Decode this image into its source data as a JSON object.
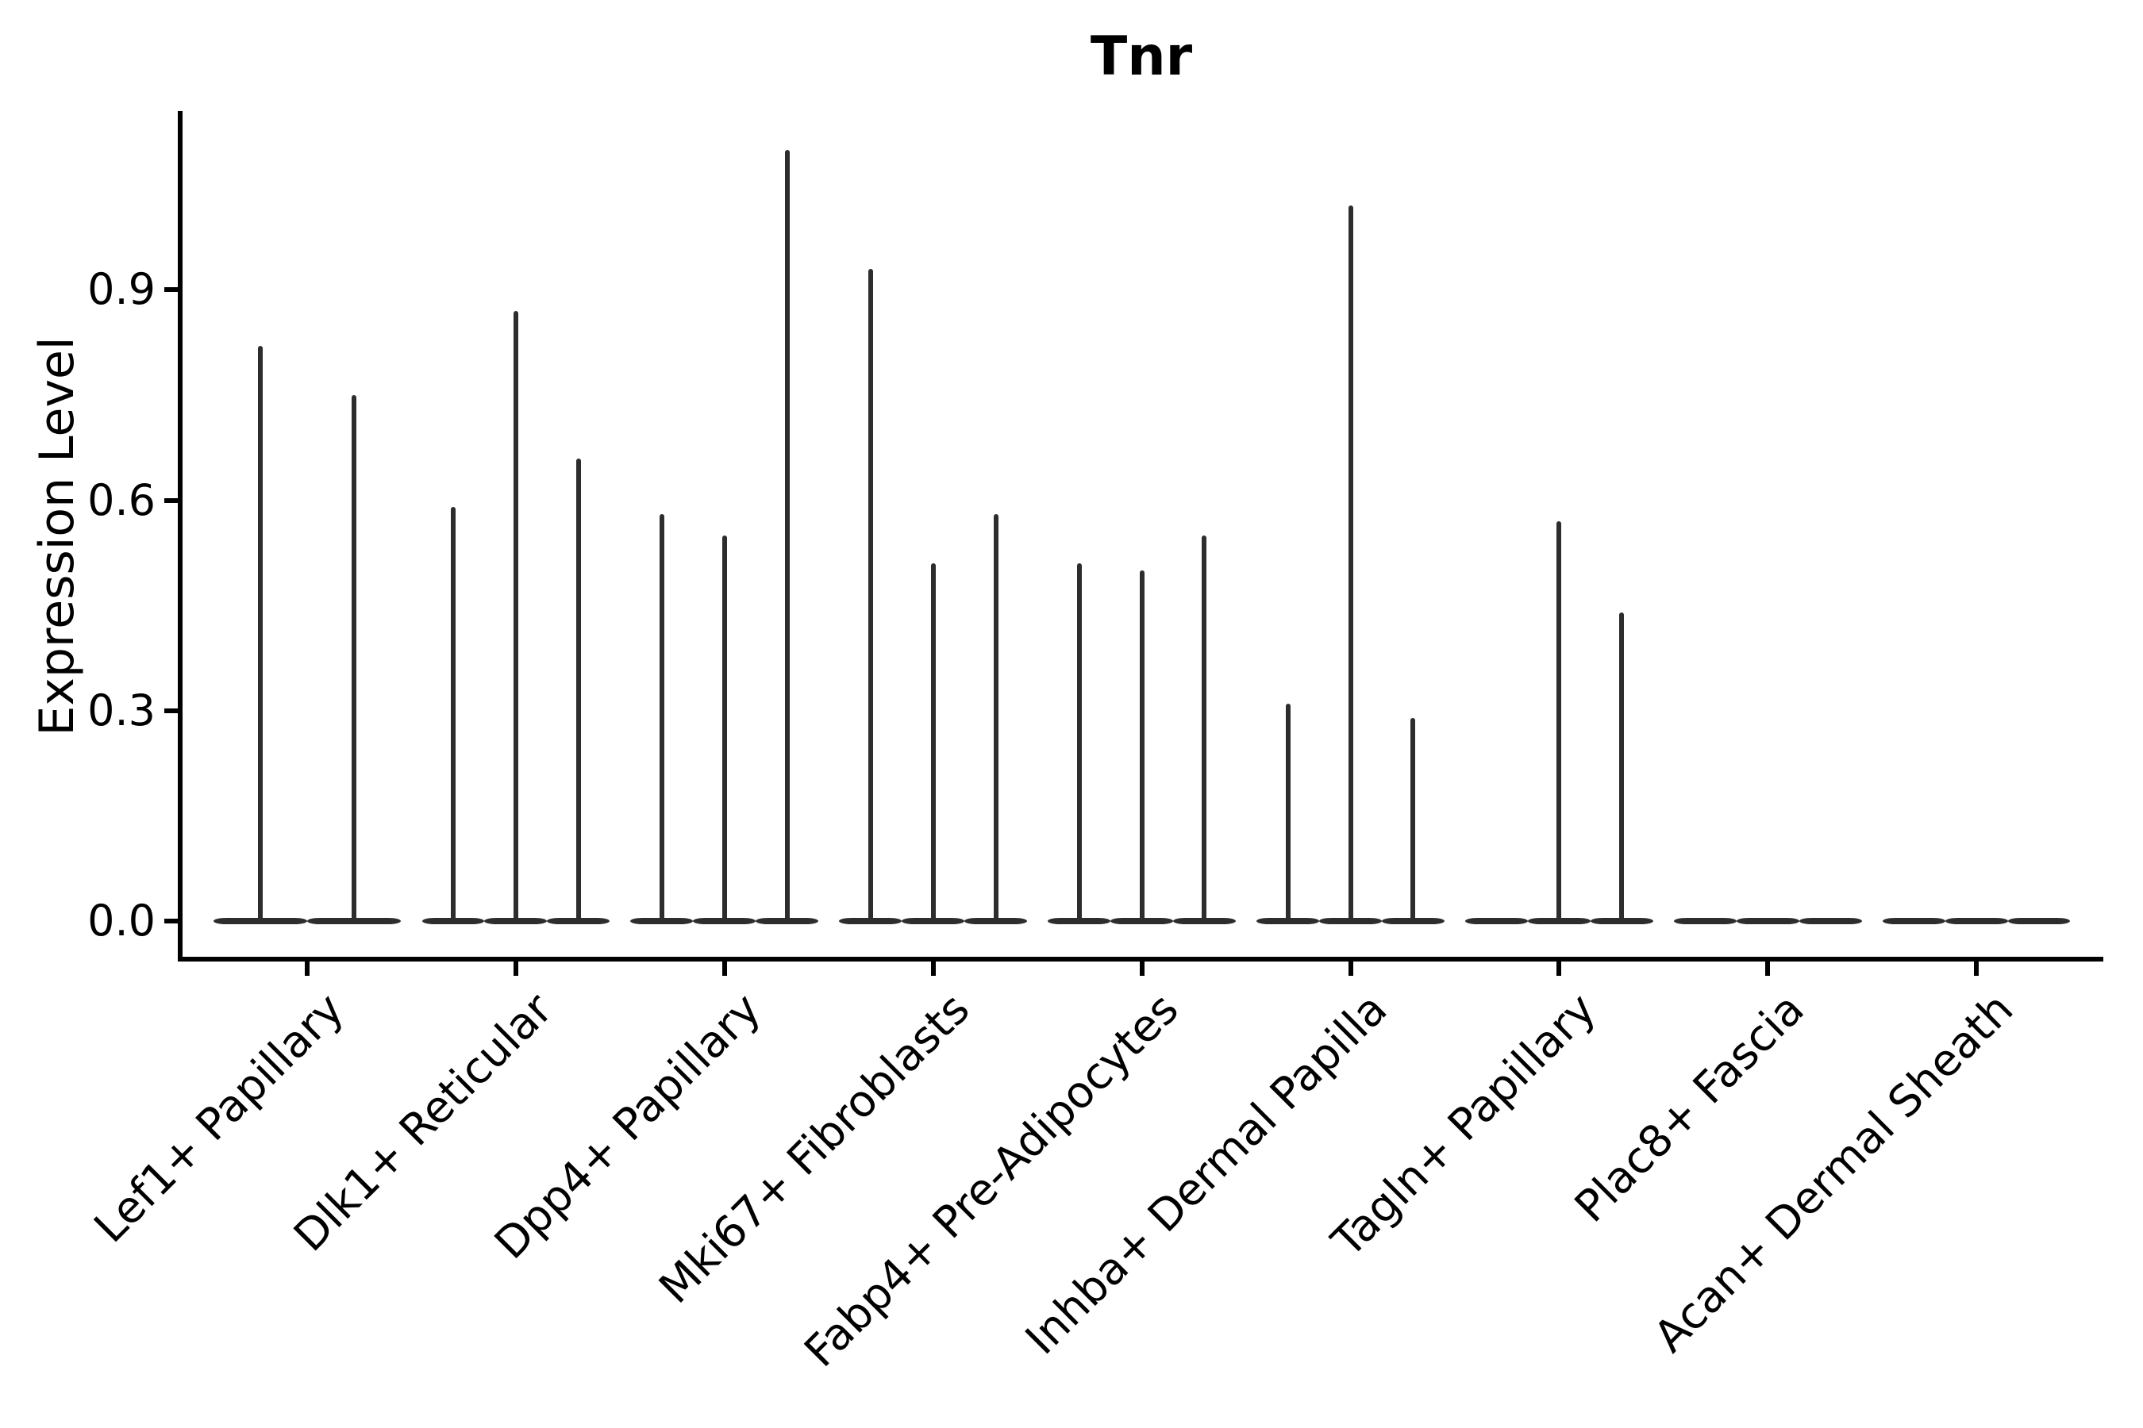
{
  "chart_data": {
    "type": "violin",
    "title": "Tnr",
    "xlabel": "",
    "ylabel": "Expression Level",
    "grid": false,
    "legend": "none",
    "ylim": [
      0,
      1.155
    ],
    "yticks": [
      {
        "label": "0.0",
        "value": 0.0
      },
      {
        "label": "0.3",
        "value": 0.3
      },
      {
        "label": "0.6",
        "value": 0.6
      },
      {
        "label": "0.9",
        "value": 0.9
      }
    ],
    "categories": [
      "Lef1+ Papillary",
      "Dlk1+ Reticular",
      "Dpp4+ Papillary",
      "Mki67+ Fibroblasts",
      "Fabp4+ Pre-Adipocytes",
      "Inhba+ Dermal Papilla",
      "Tagln+ Papillary",
      "Plac8+ Fascia",
      "Acan+ Dermal Sheath"
    ],
    "series": [
      {
        "category": "Lef1+ Papillary",
        "violin_maxima": [
          0.82,
          0.75
        ]
      },
      {
        "category": "Dlk1+ Reticular",
        "violin_maxima": [
          0.59,
          0.87,
          0.66
        ]
      },
      {
        "category": "Dpp4+ Papillary",
        "violin_maxima": [
          0.58,
          0.55,
          1.1
        ]
      },
      {
        "category": "Mki67+ Fibroblasts",
        "violin_maxima": [
          0.93,
          0.51,
          0.58
        ]
      },
      {
        "category": "Fabp4+ Pre-Adipocytes",
        "violin_maxima": [
          0.51,
          0.5,
          0.55
        ]
      },
      {
        "category": "Inhba+ Dermal Papilla",
        "violin_maxima": [
          0.31,
          1.02,
          0.29
        ]
      },
      {
        "category": "Tagln+ Papillary",
        "violin_maxima": [
          0.0,
          0.57,
          0.44
        ]
      },
      {
        "category": "Plac8+ Fascia",
        "violin_maxima": [
          0.0,
          0.0,
          0.0
        ]
      },
      {
        "category": "Acan+ Dermal Sheath",
        "violin_maxima": [
          0.0,
          0.0,
          0.0
        ]
      }
    ],
    "violin_color": "#2d2d2d",
    "axis_color": "#000000",
    "background_color": "#ffffff"
  }
}
